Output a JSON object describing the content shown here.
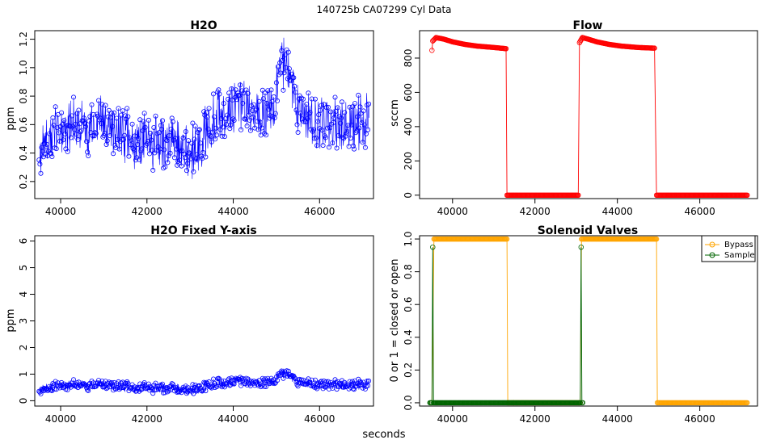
{
  "suptitle": "140725b    CA07299   Cyl Data",
  "xlabel": "seconds",
  "legend_colors": {
    "Bypass": "#FFA500",
    "Sample": "#006400"
  },
  "chart_data": [
    {
      "type": "line",
      "title": "H2O",
      "xlabel": "",
      "ylabel": "ppm",
      "xlim": [
        39400,
        47250
      ],
      "ylim": [
        0.08,
        1.26
      ],
      "x_ticks": [
        "40000",
        "42000",
        "44000",
        "46000"
      ],
      "x_tick_values": [
        40000,
        42000,
        44000,
        46000
      ],
      "y_ticks": [
        "0.2",
        "0.4",
        "0.6",
        "0.8",
        "1.0",
        "1.2"
      ],
      "y_tick_values": [
        0.2,
        0.4,
        0.6,
        0.8,
        1.0,
        1.2
      ],
      "color": "#0000FF",
      "marker": "open-circle",
      "series": [
        {
          "x": [
            39500,
            39700,
            40000,
            40300,
            40600,
            40900,
            41200,
            41500,
            41800,
            42000,
            42300,
            42600,
            42900,
            43100,
            43300,
            43500,
            43800,
            44100,
            44400,
            44700,
            44950,
            45050,
            45200,
            45350,
            45500,
            45800,
            46100,
            46400,
            46700,
            47000,
            47150
          ],
          "y": [
            0.42,
            0.48,
            0.58,
            0.6,
            0.56,
            0.62,
            0.58,
            0.52,
            0.46,
            0.48,
            0.45,
            0.48,
            0.44,
            0.4,
            0.5,
            0.62,
            0.68,
            0.72,
            0.7,
            0.68,
            0.72,
            1.0,
            1.05,
            0.88,
            0.7,
            0.62,
            0.6,
            0.62,
            0.6,
            0.63,
            0.62
          ]
        }
      ]
    },
    {
      "type": "line",
      "title": "Flow",
      "xlabel": "",
      "ylabel": "sccm",
      "xlim": [
        39200,
        47400
      ],
      "ylim": [
        -20,
        960
      ],
      "x_ticks": [
        "40000",
        "42000",
        "44000",
        "46000"
      ],
      "x_tick_values": [
        40000,
        42000,
        44000,
        46000
      ],
      "y_ticks": [
        "0",
        "200",
        "400",
        "600",
        "800"
      ],
      "y_tick_values": [
        0,
        200,
        400,
        600,
        800
      ],
      "color": "#FF0000",
      "marker": "open-circle",
      "series": [
        {
          "x": [
            39500,
            39520,
            39600,
            39800,
            40000,
            40300,
            40600,
            41000,
            41300,
            41320,
            43050,
            43080,
            43150,
            43300,
            43500,
            43800,
            44100,
            44500,
            44900,
            44950,
            47150
          ],
          "y": [
            845,
            900,
            920,
            910,
            895,
            880,
            870,
            862,
            855,
            0,
            0,
            890,
            920,
            910,
            895,
            880,
            870,
            862,
            858,
            0,
            0
          ]
        }
      ]
    },
    {
      "type": "line",
      "title": "H2O Fixed Y-axis",
      "xlabel": "",
      "ylabel": "ppm",
      "xlim": [
        39400,
        47250
      ],
      "ylim": [
        -0.2,
        6.2
      ],
      "x_ticks": [
        "40000",
        "42000",
        "44000",
        "46000"
      ],
      "x_tick_values": [
        40000,
        42000,
        44000,
        46000
      ],
      "y_ticks": [
        "0",
        "1",
        "2",
        "3",
        "4",
        "5",
        "6"
      ],
      "y_tick_values": [
        0,
        1,
        2,
        3,
        4,
        5,
        6
      ],
      "color": "#0000FF",
      "marker": "open-circle",
      "series": [
        {
          "x": [
            39500,
            39700,
            40000,
            40300,
            40600,
            40900,
            41200,
            41500,
            41800,
            42000,
            42300,
            42600,
            42900,
            43100,
            43300,
            43500,
            43800,
            44100,
            44400,
            44700,
            44950,
            45050,
            45200,
            45350,
            45500,
            45800,
            46100,
            46400,
            46700,
            47000,
            47150
          ],
          "y": [
            0.42,
            0.48,
            0.58,
            0.6,
            0.56,
            0.62,
            0.58,
            0.52,
            0.46,
            0.48,
            0.45,
            0.48,
            0.44,
            0.4,
            0.5,
            0.62,
            0.68,
            0.72,
            0.7,
            0.68,
            0.72,
            1.0,
            1.05,
            0.88,
            0.7,
            0.62,
            0.6,
            0.62,
            0.6,
            0.63,
            0.62
          ]
        }
      ]
    },
    {
      "type": "line",
      "title": "Solenoid Valves",
      "xlabel": "",
      "ylabel": "0 or 1 = closed or open",
      "xlim": [
        39200,
        47400
      ],
      "ylim": [
        -0.02,
        1.02
      ],
      "x_ticks": [
        "40000",
        "42000",
        "44000",
        "46000"
      ],
      "x_tick_values": [
        40000,
        42000,
        44000,
        46000
      ],
      "y_ticks": [
        "0.0",
        "0.2",
        "0.4",
        "0.6",
        "0.8",
        "1.0"
      ],
      "y_tick_values": [
        0.0,
        0.2,
        0.4,
        0.6,
        0.8,
        1.0
      ],
      "legend": {
        "position": "top-right",
        "entries": [
          "Bypass",
          "Sample"
        ]
      },
      "series": [
        {
          "name": "Bypass",
          "color": "#FFA500",
          "x": [
            39500,
            39550,
            41320,
            41340,
            43100,
            43130,
            44950,
            44970,
            47150
          ],
          "y": [
            0,
            1,
            1,
            0,
            0,
            1,
            1,
            0,
            0
          ]
        },
        {
          "name": "Sample",
          "color": "#006400",
          "x": [
            39450,
            39500,
            39520,
            39540,
            43100,
            43120,
            43140,
            43160
          ],
          "y": [
            0,
            0,
            0.95,
            0,
            0,
            0.95,
            0,
            0
          ]
        }
      ]
    }
  ]
}
